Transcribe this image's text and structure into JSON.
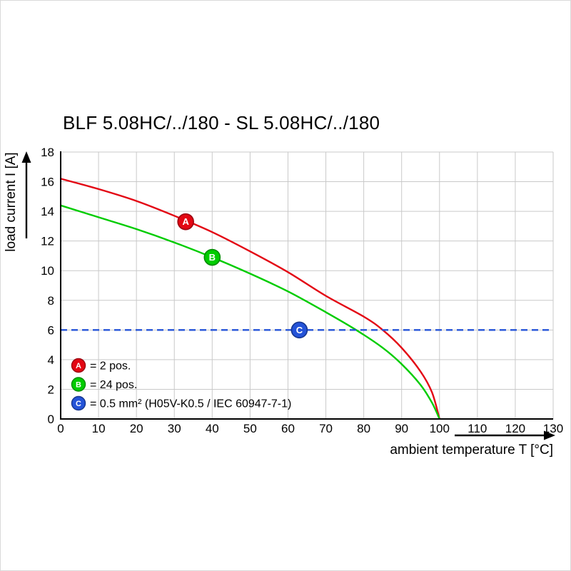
{
  "chart_data": {
    "type": "line",
    "title": "BLF 5.08HC/../180 - SL 5.08HC/../180",
    "xlabel": "ambient temperature T [°C]",
    "ylabel": "load current I [A]",
    "xlim": [
      0,
      130
    ],
    "ylim": [
      0,
      18
    ],
    "x_ticks": [
      0,
      10,
      20,
      30,
      40,
      50,
      60,
      70,
      80,
      90,
      100,
      110,
      120,
      130
    ],
    "y_ticks": [
      0,
      2,
      4,
      6,
      8,
      10,
      12,
      14,
      16,
      18
    ],
    "grid": true,
    "grid_color": "#c9c9c9",
    "axis_color": "#000000",
    "legend_position": "inside-bottom-left",
    "series": [
      {
        "id": "A",
        "legend_label": "= 2 pos.",
        "color": "#e30613",
        "stroke_dark": "#9c0410",
        "line_style": "solid",
        "marker_at": [
          33,
          13.3
        ],
        "points": [
          [
            0,
            16.2
          ],
          [
            10,
            15.5
          ],
          [
            20,
            14.7
          ],
          [
            30,
            13.7
          ],
          [
            40,
            12.6
          ],
          [
            50,
            11.3
          ],
          [
            60,
            9.9
          ],
          [
            70,
            8.3
          ],
          [
            80,
            6.9
          ],
          [
            85,
            6
          ],
          [
            90,
            4.8
          ],
          [
            95,
            3.2
          ],
          [
            98,
            1.8
          ],
          [
            100,
            0
          ]
        ]
      },
      {
        "id": "B",
        "legend_label": "= 24 pos.",
        "color": "#00cc00",
        "stroke_dark": "#008a00",
        "line_style": "solid",
        "marker_at": [
          40,
          10.9
        ],
        "points": [
          [
            0,
            14.4
          ],
          [
            10,
            13.6
          ],
          [
            20,
            12.8
          ],
          [
            30,
            11.9
          ],
          [
            40,
            10.9
          ],
          [
            50,
            9.8
          ],
          [
            60,
            8.6
          ],
          [
            70,
            7.2
          ],
          [
            78,
            6
          ],
          [
            85,
            4.8
          ],
          [
            90,
            3.7
          ],
          [
            95,
            2.3
          ],
          [
            98,
            1.1
          ],
          [
            100,
            0
          ]
        ]
      },
      {
        "id": "C",
        "legend_label": "= 0.5 mm² (H05V-K0.5 / IEC 60947-7-1)",
        "color": "#2453d8",
        "stroke_dark": "#16368f",
        "line_style": "dashed",
        "marker_at": [
          63,
          6
        ],
        "points": [
          [
            0,
            6
          ],
          [
            130,
            6
          ]
        ]
      }
    ]
  }
}
